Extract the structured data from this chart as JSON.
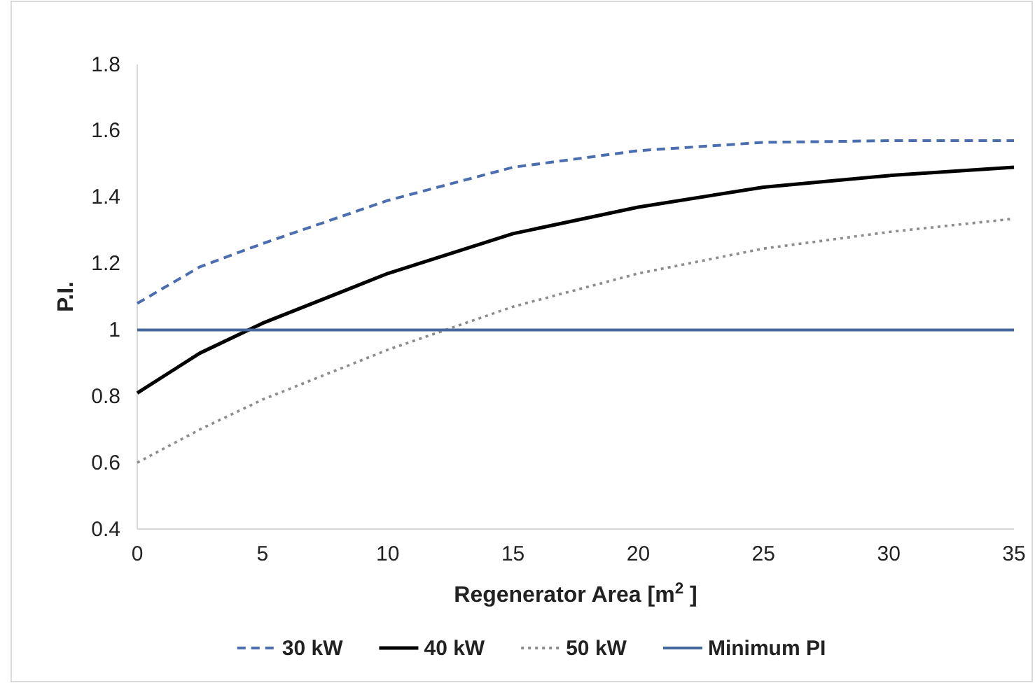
{
  "chart_data": {
    "type": "line",
    "xlabel": "Regenerator Area [m$^{2}$ ]",
    "ylabel": "P.I.",
    "xlim": [
      0,
      35
    ],
    "xticks": [
      0,
      5,
      10,
      15,
      20,
      25,
      30,
      35
    ],
    "ylim": [
      0.4,
      1.8
    ],
    "yticks": [
      0.4,
      0.6,
      0.8,
      1,
      1.2,
      1.4,
      1.6,
      1.8
    ],
    "grid": false,
    "legend": "bottom",
    "marker": "none",
    "series": [
      {
        "name": "30 kW",
        "color": "#4a6eb0",
        "line_style": "dashed",
        "x": [
          0,
          2.5,
          5,
          10,
          15,
          20,
          25,
          30,
          35
        ],
        "values": [
          1.08,
          1.19,
          1.26,
          1.39,
          1.49,
          1.54,
          1.565,
          1.57,
          1.57
        ]
      },
      {
        "name": "40 kW",
        "color": "#000000",
        "line_style": "solid",
        "x": [
          0,
          2.5,
          5,
          10,
          15,
          20,
          25,
          30,
          35
        ],
        "values": [
          0.81,
          0.93,
          1.02,
          1.17,
          1.29,
          1.37,
          1.43,
          1.465,
          1.49
        ]
      },
      {
        "name": "50 kW",
        "color": "#8c8c8c",
        "line_style": "dotted",
        "x": [
          0,
          2.5,
          5,
          10,
          15,
          20,
          25,
          30,
          35
        ],
        "values": [
          0.6,
          0.7,
          0.79,
          0.94,
          1.07,
          1.17,
          1.245,
          1.295,
          1.335
        ]
      },
      {
        "name": "Minimum PI",
        "color": "#44679e",
        "line_style": "solid",
        "x": [
          0,
          35
        ],
        "values": [
          1,
          1
        ]
      }
    ]
  }
}
